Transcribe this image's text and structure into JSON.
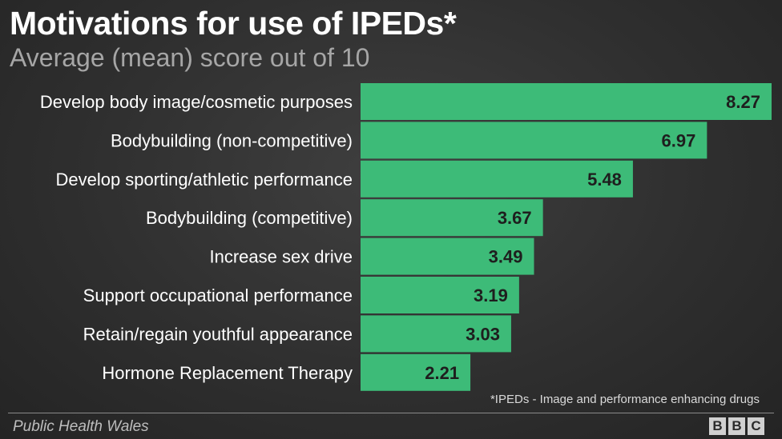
{
  "chart_data": {
    "type": "bar",
    "orientation": "horizontal",
    "title": "Motivations for use of IPEDs*",
    "subtitle": "Average (mean) score out of 10",
    "categories": [
      "Develop body image/cosmetic purposes",
      "Bodybuilding (non-competitive)",
      "Develop sporting/athletic performance",
      "Bodybuilding (competitive)",
      "Increase sex drive",
      "Support occupational performance",
      "Retain/regain youthful appearance",
      "Hormone Replacement Therapy"
    ],
    "values": [
      8.27,
      6.97,
      5.48,
      3.67,
      3.49,
      3.19,
      3.03,
      2.21
    ],
    "value_labels": [
      "8.27",
      "6.97",
      "5.48",
      "3.67",
      "3.49",
      "3.19",
      "3.03",
      "2.21"
    ],
    "xlim": [
      0,
      8.27
    ],
    "grid": false,
    "bar_color": "#3dbb78"
  },
  "footnote": "*IPEDs - Image and performance enhancing drugs",
  "source": "Public Health Wales",
  "logo": {
    "letters": [
      "B",
      "B",
      "C"
    ]
  }
}
